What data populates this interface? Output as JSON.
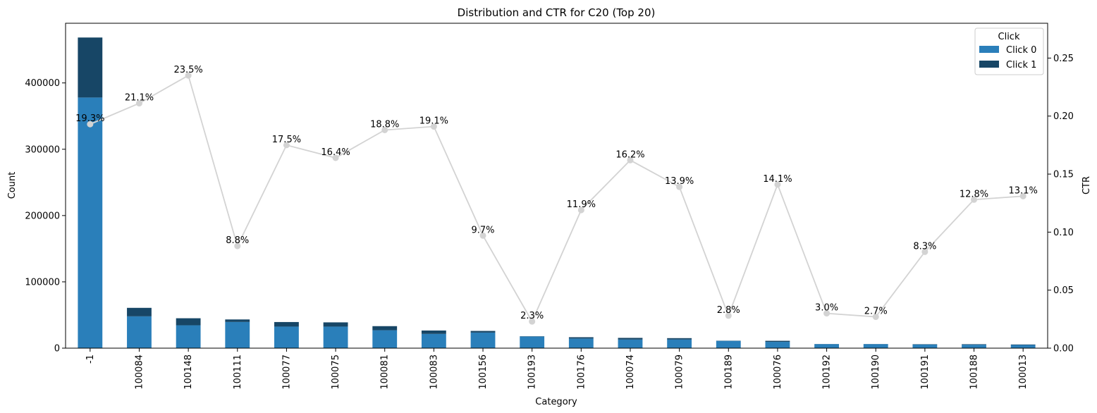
{
  "chart_data": {
    "type": "bar",
    "title": "Distribution and CTR for C20 (Top 20)",
    "xlabel": "Category",
    "ylabel": "Count",
    "y2label": "CTR",
    "categories": [
      "-1",
      "100084",
      "100148",
      "100111",
      "100077",
      "100075",
      "100081",
      "100083",
      "100156",
      "100193",
      "100176",
      "100074",
      "100079",
      "100189",
      "100076",
      "100192",
      "100190",
      "100191",
      "100188",
      "100013"
    ],
    "series": [
      {
        "name": "Click 0",
        "color": "#2a7fba",
        "values": [
          378000,
          48000,
          34500,
          39500,
          32500,
          32500,
          27000,
          21500,
          23500,
          17500,
          14500,
          13000,
          13000,
          11000,
          9500,
          6100,
          6100,
          5500,
          5200,
          4800
        ]
      },
      {
        "name": "Click 1",
        "color": "#174666",
        "values": [
          90500,
          12800,
          10600,
          3800,
          6900,
          6400,
          6200,
          5100,
          2500,
          400,
          2000,
          2500,
          2100,
          300,
          1600,
          190,
          170,
          500,
          760,
          720
        ]
      }
    ],
    "ctr": {
      "color": "#d3d3d3",
      "values": [
        0.193,
        0.211,
        0.235,
        0.088,
        0.175,
        0.164,
        0.188,
        0.191,
        0.097,
        0.023,
        0.119,
        0.162,
        0.139,
        0.028,
        0.141,
        0.03,
        0.027,
        0.083,
        0.128,
        0.131
      ],
      "labels": [
        "19.3%",
        "21.1%",
        "23.5%",
        "8.8%",
        "17.5%",
        "16.4%",
        "18.8%",
        "19.1%",
        "9.7%",
        "2.3%",
        "11.9%",
        "16.2%",
        "13.9%",
        "2.8%",
        "14.1%",
        "3.0%",
        "2.7%",
        "8.3%",
        "12.8%",
        "13.1%"
      ]
    },
    "yticks": [
      "0",
      "100000",
      "200000",
      "300000",
      "400000"
    ],
    "ylim": [
      0,
      490000
    ],
    "y2ticks": [
      "0.00",
      "0.05",
      "0.10",
      "0.15",
      "0.20",
      "0.25"
    ],
    "y2lim": [
      0,
      0.28
    ],
    "legend": {
      "title": "Click",
      "placement": "top-right",
      "entries": [
        "Click 0",
        "Click 1"
      ]
    },
    "grid": false
  }
}
